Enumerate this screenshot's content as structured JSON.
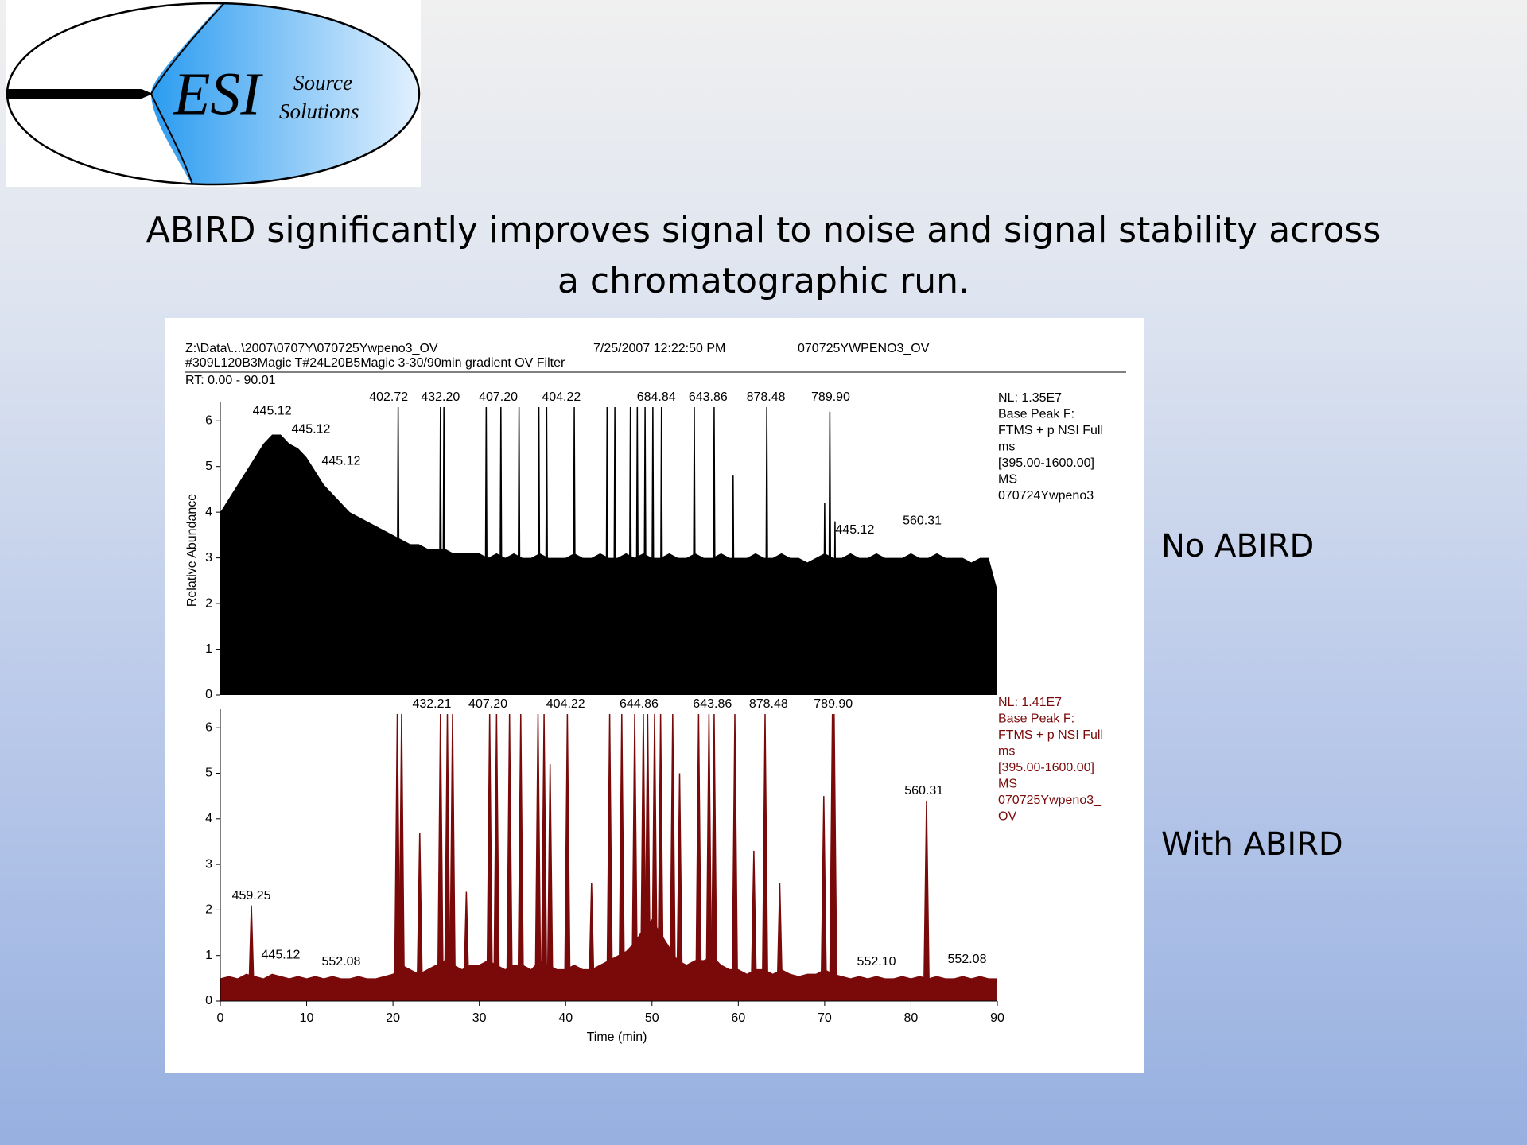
{
  "slide": {
    "logo": {
      "main": "ESI",
      "line1": "Source",
      "line2": "Solutions"
    },
    "title": "ABIRD significantly improves signal to noise and signal stability across a chromatographic run.",
    "panel_header": {
      "path": "Z:\\Data\\...\\2007\\0707Y\\070725Ywpeno3_OV",
      "date": "7/25/2007 12:22:50 PM",
      "file": "070725YWPENO3_OV",
      "filter": "#309L120B3Magic T#24L20B5Magic 3-30/90min gradient OV Filter",
      "range": "RT: 0.00 - 90.01"
    },
    "ylabel": "Relative Abundance"
  },
  "chart_data": [
    {
      "type": "area",
      "caption": "No ABIRD",
      "color": "#000000",
      "info": [
        "NL: 1.35E7",
        "Base Peak F:",
        "FTMS + p NSI Full",
        "ms",
        "[395.00-1600.00]",
        "MS",
        "070724Ywpeno3"
      ],
      "xlim": [
        0,
        90
      ],
      "ylim": [
        0,
        6.3
      ],
      "yticks": [
        0,
        1,
        2,
        3,
        4,
        5,
        6
      ],
      "x": [
        0,
        1,
        2,
        3,
        4,
        5,
        6,
        7,
        8,
        9,
        10,
        11,
        12,
        13,
        14,
        15,
        16,
        17,
        18,
        19,
        20,
        21,
        22,
        23,
        24,
        25,
        26,
        27,
        28,
        29,
        30,
        31,
        32,
        33,
        34,
        35,
        36,
        37,
        38,
        39,
        40,
        41,
        42,
        43,
        44,
        45,
        46,
        47,
        48,
        49,
        50,
        51,
        52,
        53,
        54,
        55,
        56,
        57,
        58,
        59,
        60,
        61,
        62,
        63,
        64,
        65,
        66,
        67,
        68,
        69,
        70,
        71,
        72,
        73,
        74,
        75,
        76,
        77,
        78,
        79,
        80,
        81,
        82,
        83,
        84,
        85,
        86,
        87,
        88,
        89,
        90
      ],
      "values": [
        4.0,
        4.3,
        4.6,
        4.9,
        5.2,
        5.5,
        5.7,
        5.7,
        5.5,
        5.4,
        5.2,
        4.9,
        4.6,
        4.4,
        4.2,
        4.0,
        3.9,
        3.8,
        3.7,
        3.6,
        3.5,
        3.4,
        3.3,
        3.3,
        3.2,
        3.2,
        3.2,
        3.1,
        3.1,
        3.1,
        3.1,
        3.0,
        3.1,
        3.0,
        3.1,
        3.0,
        3.0,
        3.1,
        3.0,
        3.0,
        3.0,
        3.1,
        3.0,
        3.0,
        3.1,
        3.0,
        3.0,
        3.1,
        3.0,
        3.1,
        3.0,
        3.0,
        3.1,
        3.0,
        3.0,
        3.1,
        3.0,
        3.0,
        3.1,
        3.0,
        3.0,
        3.0,
        3.1,
        3.0,
        3.0,
        3.1,
        3.0,
        3.0,
        2.9,
        3.0,
        3.1,
        3.0,
        3.0,
        3.1,
        3.0,
        3.0,
        3.1,
        3.0,
        3.0,
        3.0,
        3.1,
        3.0,
        3.0,
        3.1,
        3.0,
        3.0,
        3.0,
        2.9,
        3.0,
        3.0,
        2.3
      ],
      "peaks": {
        "x": [
          20.6,
          25.5,
          25.9,
          30.8,
          32.5,
          34.6,
          36.9,
          37.8,
          41.0,
          44.8,
          45.7,
          47.5,
          48.3,
          49.2,
          50.1,
          51.1,
          54.9,
          57.2,
          59.4,
          63.3,
          70.0,
          70.6,
          71.2
        ],
        "values": [
          6.3,
          6.3,
          6.3,
          6.3,
          6.3,
          6.3,
          6.3,
          6.3,
          6.3,
          6.3,
          6.3,
          6.3,
          6.3,
          6.3,
          6.3,
          6.3,
          6.3,
          6.3,
          4.8,
          6.3,
          4.2,
          6.2,
          3.8
        ]
      },
      "annotations": [
        {
          "label": "445.12",
          "x": 6.0,
          "y": 6.0
        },
        {
          "label": "445.12",
          "x": 10.5,
          "y": 5.6
        },
        {
          "label": "445.12",
          "x": 14.0,
          "y": 4.9
        },
        {
          "label": "402.72",
          "x": 19.5,
          "y": 6.3
        },
        {
          "label": "432.20",
          "x": 25.5,
          "y": 6.3
        },
        {
          "label": "407.20",
          "x": 32.2,
          "y": 6.3
        },
        {
          "label": "404.22",
          "x": 39.5,
          "y": 6.3
        },
        {
          "label": "684.84",
          "x": 50.5,
          "y": 6.3
        },
        {
          "label": "643.86",
          "x": 56.5,
          "y": 6.3
        },
        {
          "label": "878.48",
          "x": 63.2,
          "y": 6.3
        },
        {
          "label": "789.90",
          "x": 70.7,
          "y": 6.3
        },
        {
          "label": "445.12",
          "x": 73.5,
          "y": 3.4
        },
        {
          "label": "560.31",
          "x": 81.3,
          "y": 3.6
        }
      ]
    },
    {
      "type": "area",
      "caption": "With ABIRD",
      "color": "#7a0a0a",
      "info": [
        "NL: 1.41E7",
        "Base Peak F:",
        "FTMS + p NSI Full",
        "ms",
        "[395.00-1600.00]",
        "MS",
        "070725Ywpeno3_",
        "OV"
      ],
      "xlim": [
        0,
        90
      ],
      "ylim": [
        0,
        6.3
      ],
      "yticks": [
        0,
        1,
        2,
        3,
        4,
        5,
        6
      ],
      "xticks": [
        0,
        10,
        20,
        30,
        40,
        50,
        60,
        70,
        80,
        90
      ],
      "xlabel": "Time (min)",
      "x": [
        0,
        1,
        2,
        3,
        4,
        5,
        6,
        7,
        8,
        9,
        10,
        11,
        12,
        13,
        14,
        15,
        16,
        17,
        18,
        19,
        20,
        21,
        22,
        23,
        24,
        25,
        26,
        27,
        28,
        29,
        30,
        31,
        32,
        33,
        34,
        35,
        36,
        37,
        38,
        39,
        40,
        41,
        42,
        43,
        44,
        45,
        46,
        47,
        48,
        49,
        50,
        51,
        52,
        53,
        54,
        55,
        56,
        57,
        58,
        59,
        60,
        61,
        62,
        63,
        64,
        65,
        66,
        67,
        68,
        69,
        70,
        71,
        72,
        73,
        74,
        75,
        76,
        77,
        78,
        79,
        80,
        81,
        82,
        83,
        84,
        85,
        86,
        87,
        88,
        89,
        90
      ],
      "values": [
        0.5,
        0.55,
        0.5,
        0.6,
        0.55,
        0.5,
        0.6,
        0.55,
        0.5,
        0.55,
        0.5,
        0.55,
        0.5,
        0.55,
        0.5,
        0.5,
        0.55,
        0.5,
        0.5,
        0.55,
        0.6,
        0.8,
        0.7,
        0.6,
        0.7,
        0.8,
        0.9,
        0.8,
        0.7,
        0.8,
        0.8,
        0.9,
        0.8,
        0.7,
        0.8,
        0.8,
        0.7,
        0.9,
        0.8,
        0.7,
        0.7,
        0.8,
        0.7,
        0.7,
        0.8,
        0.9,
        1.0,
        1.1,
        1.3,
        1.6,
        1.8,
        1.5,
        1.2,
        0.9,
        0.8,
        0.9,
        0.9,
        1.0,
        0.8,
        0.7,
        0.7,
        0.6,
        0.7,
        0.7,
        0.6,
        0.7,
        0.6,
        0.55,
        0.6,
        0.6,
        0.7,
        0.6,
        0.55,
        0.5,
        0.55,
        0.5,
        0.55,
        0.5,
        0.5,
        0.55,
        0.5,
        0.55,
        0.5,
        0.55,
        0.5,
        0.5,
        0.55,
        0.5,
        0.55,
        0.5,
        0.5
      ],
      "peaks": {
        "x": [
          3.6,
          20.5,
          21.0,
          23.1,
          25.5,
          26.3,
          26.9,
          28.5,
          31.2,
          32.0,
          33.5,
          34.8,
          36.8,
          37.5,
          38.2,
          40.2,
          43.0,
          45.1,
          46.5,
          48.0,
          49.0,
          49.5,
          50.3,
          51.0,
          52.4,
          53.2,
          55.4,
          56.6,
          57.2,
          59.6,
          61.8,
          63.1,
          64.8,
          69.9,
          70.9,
          71.1,
          81.8
        ],
        "values": [
          2.1,
          6.3,
          6.3,
          3.7,
          6.3,
          6.3,
          6.3,
          2.4,
          6.3,
          6.3,
          6.3,
          6.3,
          6.3,
          6.3,
          5.2,
          6.3,
          2.6,
          6.3,
          6.3,
          6.3,
          6.3,
          6.3,
          6.3,
          6.3,
          6.3,
          5.0,
          6.3,
          6.3,
          6.3,
          6.3,
          3.3,
          6.3,
          2.6,
          4.5,
          6.3,
          6.3,
          4.4
        ]
      },
      "annotations": [
        {
          "label": "459.25",
          "x": 3.6,
          "y": 2.1
        },
        {
          "label": "445.12",
          "x": 7.0,
          "y": 0.8
        },
        {
          "label": "552.08",
          "x": 14.0,
          "y": 0.65
        },
        {
          "label": "432.21",
          "x": 24.5,
          "y": 6.3
        },
        {
          "label": "407.20",
          "x": 31.0,
          "y": 6.3
        },
        {
          "label": "404.22",
          "x": 40.0,
          "y": 6.3
        },
        {
          "label": "644.86",
          "x": 48.5,
          "y": 6.3
        },
        {
          "label": "643.86",
          "x": 57.0,
          "y": 6.3
        },
        {
          "label": "878.48",
          "x": 63.5,
          "y": 6.3
        },
        {
          "label": "789.90",
          "x": 71.0,
          "y": 6.3
        },
        {
          "label": "560.31",
          "x": 81.5,
          "y": 4.4
        },
        {
          "label": "552.10",
          "x": 76.0,
          "y": 0.65
        },
        {
          "label": "552.08",
          "x": 86.5,
          "y": 0.7
        }
      ]
    }
  ]
}
